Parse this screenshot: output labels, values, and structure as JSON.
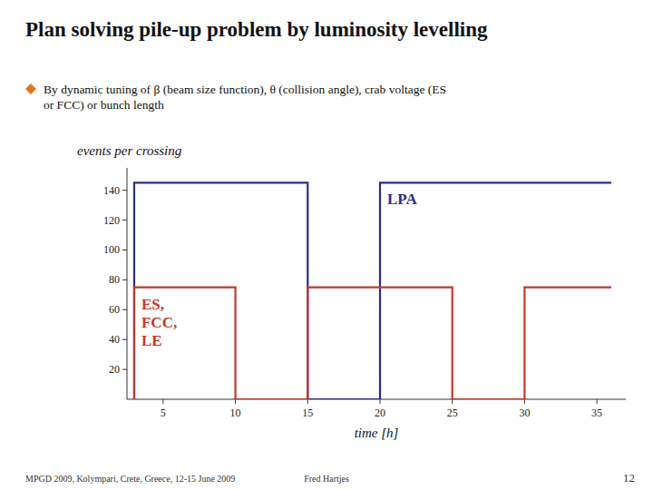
{
  "chart_data": {
    "type": "line",
    "title": "Plan solving pile-up problem by luminosity levelling",
    "subtitle": "By dynamic tuning of β (beam size function), θ (collision angle), crab voltage (ES\nor FCC) or bunch length",
    "x_label": "time [h]",
    "y_label": "events per crossing",
    "xlim": [
      2.5,
      37
    ],
    "ylim": [
      0,
      155
    ],
    "xticks": [
      5,
      10,
      15,
      20,
      25,
      30,
      35
    ],
    "yticks": [
      20,
      40,
      60,
      80,
      100,
      120,
      140
    ],
    "series": [
      {
        "name": "LPA",
        "color": "#2B2B8C",
        "x": [
          3,
          3,
          15,
          15,
          20,
          20,
          36
        ],
        "values": [
          0,
          145,
          145,
          0,
          0,
          145,
          145
        ]
      },
      {
        "name": "ES,\nFCC,\nLE",
        "color": "#C0392B",
        "x": [
          3,
          3,
          10,
          10,
          15,
          15,
          25,
          25,
          30,
          30,
          36
        ],
        "values": [
          0,
          75,
          75,
          0,
          0,
          75,
          75,
          0,
          0,
          75,
          75
        ]
      }
    ],
    "annotations": [
      "MPGD 2009, Kolympari, Crete, Greece, 12-15 June 2009",
      "Fred Hartjes",
      "12"
    ]
  }
}
